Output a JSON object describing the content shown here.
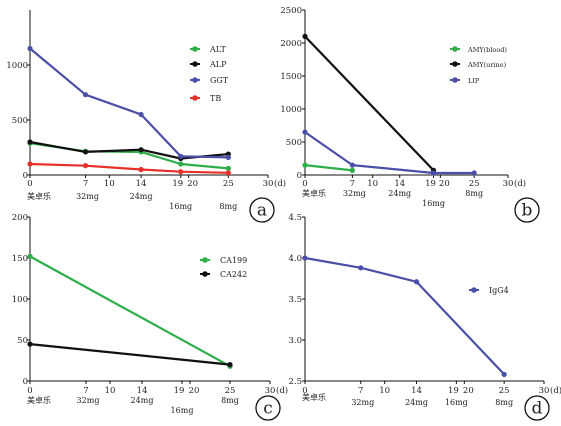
{
  "chart_data": [
    {
      "type": "line",
      "panel": "a",
      "x_unit": "(d)",
      "xlim": [
        0,
        30
      ],
      "x_ticks": [
        0,
        7,
        10,
        14,
        19,
        20,
        25,
        30
      ],
      "ylim": [
        0,
        1500
      ],
      "y_ticks": [
        0,
        500,
        1000
      ],
      "dose_labels": [
        {
          "x": 0,
          "text": "美卓乐"
        },
        {
          "x": 7,
          "text": "32mg"
        },
        {
          "x": 14,
          "text": "24mg"
        },
        {
          "x": 19,
          "text": "16mg"
        },
        {
          "x": 25,
          "text": "8mg"
        }
      ],
      "legend_position": "right",
      "series": [
        {
          "name": "ALT",
          "color": "#2eae49",
          "x": [
            0,
            7,
            14,
            19,
            25
          ],
          "y": [
            290,
            215,
            210,
            100,
            60
          ]
        },
        {
          "name": "ALP",
          "color": "#111111",
          "x": [
            0,
            7,
            14,
            19,
            25
          ],
          "y": [
            300,
            210,
            230,
            150,
            190
          ]
        },
        {
          "name": "GGT",
          "color": "#4a4fa8",
          "x": [
            0,
            7,
            14,
            19,
            25
          ],
          "y": [
            1150,
            730,
            550,
            170,
            160
          ]
        },
        {
          "name": "TB",
          "color": "#e8302a",
          "x": [
            0,
            7,
            14,
            19,
            25
          ],
          "y": [
            100,
            85,
            50,
            30,
            20
          ]
        }
      ]
    },
    {
      "type": "line",
      "panel": "b",
      "x_unit": "(d)",
      "xlim": [
        0,
        30
      ],
      "x_ticks": [
        0,
        7,
        10,
        14,
        19,
        20,
        25,
        30
      ],
      "ylim": [
        0,
        2500
      ],
      "y_ticks": [
        0,
        500,
        1000,
        1500,
        2000,
        2500
      ],
      "dose_labels": [
        {
          "x": 0,
          "text": "美卓乐"
        },
        {
          "x": 7,
          "text": "32mg"
        },
        {
          "x": 14,
          "text": "24mg"
        },
        {
          "x": 19,
          "text": "16mg"
        },
        {
          "x": 25,
          "text": "8mg"
        }
      ],
      "legend_position": "right",
      "series": [
        {
          "name": "AMY(blood)",
          "color": "#2eae49",
          "x": [
            0,
            7
          ],
          "y": [
            150,
            70
          ]
        },
        {
          "name": "AMY(urine)",
          "color": "#111111",
          "x": [
            0,
            19
          ],
          "y": [
            2100,
            70
          ]
        },
        {
          "name": "LIP",
          "color": "#4a4fa8",
          "x": [
            0,
            7,
            19,
            25
          ],
          "y": [
            650,
            150,
            30,
            30
          ]
        }
      ]
    },
    {
      "type": "line",
      "panel": "c",
      "x_unit": "(d)",
      "xlim": [
        0,
        30
      ],
      "x_ticks": [
        0,
        7,
        10,
        14,
        19,
        20,
        25,
        30
      ],
      "ylim": [
        0,
        200
      ],
      "y_ticks": [
        0,
        50,
        100,
        150,
        200
      ],
      "dose_labels": [
        {
          "x": 0,
          "text": "美卓乐"
        },
        {
          "x": 7,
          "text": "32mg"
        },
        {
          "x": 14,
          "text": "24mg"
        },
        {
          "x": 19,
          "text": "16mg"
        },
        {
          "x": 25,
          "text": "8mg"
        }
      ],
      "legend_position": "right",
      "series": [
        {
          "name": "CA199",
          "color": "#2eae49",
          "x": [
            0,
            25
          ],
          "y": [
            152,
            18
          ]
        },
        {
          "name": "CA242",
          "color": "#111111",
          "x": [
            0,
            25
          ],
          "y": [
            45,
            20
          ]
        }
      ]
    },
    {
      "type": "line",
      "panel": "d",
      "x_unit": "(d)",
      "xlim": [
        0,
        30
      ],
      "x_ticks": [
        0,
        7,
        10,
        14,
        19,
        20,
        25,
        30
      ],
      "ylim": [
        2.5,
        4.5
      ],
      "y_ticks": [
        2.5,
        3.0,
        3.5,
        4.0,
        4.5
      ],
      "dose_labels": [
        {
          "x": 0,
          "text": "美卓乐"
        },
        {
          "x": 7,
          "text": "32mg"
        },
        {
          "x": 14,
          "text": "24mg"
        },
        {
          "x": 19,
          "text": "16mg"
        },
        {
          "x": 25,
          "text": "8mg"
        }
      ],
      "legend_position": "right",
      "series": [
        {
          "name": "IgG4",
          "color": "#4a4fa8",
          "x": [
            0,
            7,
            14,
            25
          ],
          "y": [
            4.0,
            3.88,
            3.71,
            2.58
          ]
        }
      ]
    }
  ]
}
